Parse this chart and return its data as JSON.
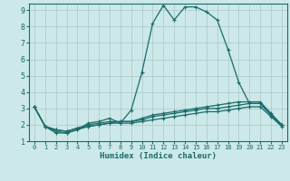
{
  "xlabel": "Humidex (Indice chaleur)",
  "background_color": "#cce8e8",
  "grid_color": "#b0cccc",
  "line_color": "#1a6b6b",
  "xlim": [
    -0.5,
    23.5
  ],
  "ylim": [
    1,
    9.4
  ],
  "yticks": [
    1,
    2,
    3,
    4,
    5,
    6,
    7,
    8,
    9
  ],
  "xticks": [
    0,
    1,
    2,
    3,
    4,
    5,
    6,
    7,
    8,
    9,
    10,
    11,
    12,
    13,
    14,
    15,
    16,
    17,
    18,
    19,
    20,
    21,
    22,
    23
  ],
  "lines": [
    {
      "x": [
        0,
        1,
        2,
        3,
        4,
        5,
        6,
        7,
        8,
        9,
        10,
        11,
        12,
        13,
        14,
        15,
        16,
        17,
        18,
        19,
        20,
        21,
        22,
        23
      ],
      "y": [
        3.1,
        1.9,
        1.5,
        1.5,
        1.7,
        2.1,
        2.2,
        2.4,
        2.1,
        2.9,
        5.2,
        8.2,
        9.3,
        8.4,
        9.2,
        9.2,
        8.9,
        8.4,
        6.6,
        4.6,
        3.3,
        3.3,
        2.6,
        2.0
      ]
    },
    {
      "x": [
        0,
        1,
        2,
        3,
        4,
        5,
        6,
        7,
        8,
        9,
        10,
        11,
        12,
        13,
        14,
        15,
        16,
        17,
        18,
        19,
        20,
        21,
        22,
        23
      ],
      "y": [
        3.1,
        1.9,
        1.7,
        1.6,
        1.8,
        1.9,
        2.0,
        2.1,
        2.2,
        2.2,
        2.4,
        2.6,
        2.7,
        2.8,
        2.9,
        3.0,
        3.1,
        3.2,
        3.3,
        3.4,
        3.4,
        3.4,
        2.7,
        2.0
      ]
    },
    {
      "x": [
        0,
        1,
        2,
        3,
        4,
        5,
        6,
        7,
        8,
        9,
        10,
        11,
        12,
        13,
        14,
        15,
        16,
        17,
        18,
        19,
        20,
        21,
        22,
        23
      ],
      "y": [
        3.1,
        1.9,
        1.7,
        1.6,
        1.8,
        2.0,
        2.1,
        2.2,
        2.2,
        2.2,
        2.3,
        2.5,
        2.6,
        2.7,
        2.8,
        2.9,
        3.0,
        3.0,
        3.1,
        3.2,
        3.3,
        3.3,
        2.6,
        2.0
      ]
    },
    {
      "x": [
        0,
        1,
        2,
        3,
        4,
        5,
        6,
        7,
        8,
        9,
        10,
        11,
        12,
        13,
        14,
        15,
        16,
        17,
        18,
        19,
        20,
        21,
        22,
        23
      ],
      "y": [
        3.1,
        1.9,
        1.6,
        1.5,
        1.7,
        1.9,
        2.0,
        2.1,
        2.1,
        2.1,
        2.2,
        2.3,
        2.4,
        2.5,
        2.6,
        2.7,
        2.8,
        2.8,
        2.9,
        3.0,
        3.1,
        3.1,
        2.5,
        1.9
      ]
    }
  ]
}
